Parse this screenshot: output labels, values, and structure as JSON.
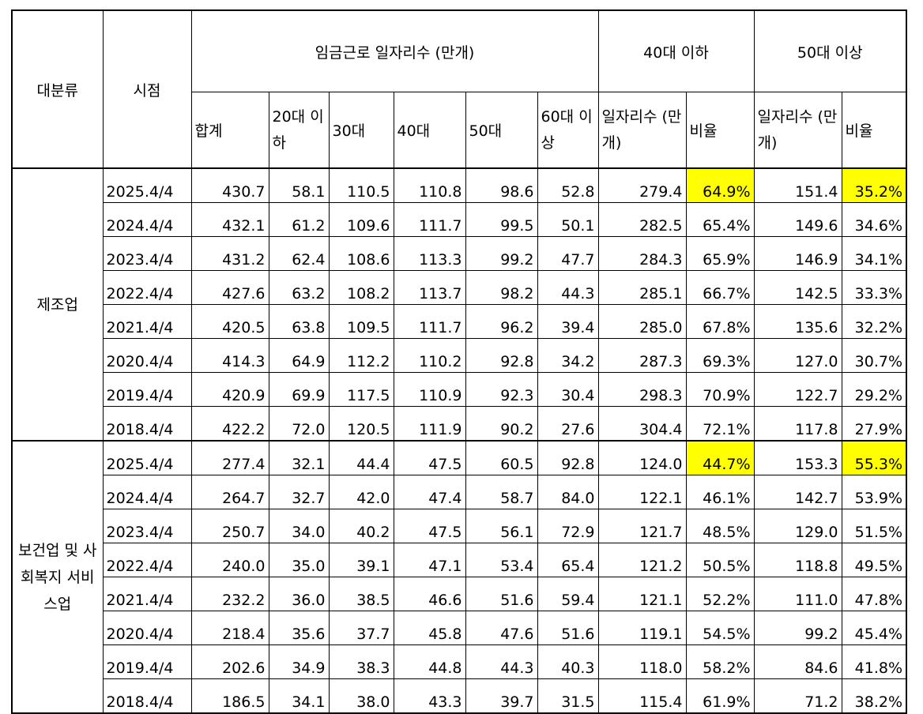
{
  "chart_data": {
    "type": "table",
    "headers": {
      "category": "대분류",
      "period": "시점",
      "jobs_group": "임금근로 일자리수 (만개)",
      "under40_group": "40대 이하",
      "over50_group": "50대 이상",
      "total": "합계",
      "age20": "20대 이하",
      "age30": "30대",
      "age40": "40대",
      "age50": "50대",
      "age60": "60대 이상",
      "under40_jobs": "일자리수 (만개)",
      "under40_ratio": "비율",
      "over50_jobs": "일자리수 (만개)",
      "over50_ratio": "비율"
    },
    "highlight_color": "#ffff00",
    "groups": [
      {
        "category": "제조업",
        "rows": [
          {
            "period": "2025.4/4",
            "total": "430.7",
            "a20": "58.1",
            "a30": "110.5",
            "a40": "110.8",
            "a50": "98.6",
            "a60": "52.8",
            "u40": "279.4",
            "u40r": "64.9%",
            "o50": "151.4",
            "o50r": "35.2%",
            "highlight": true
          },
          {
            "period": "2024.4/4",
            "total": "432.1",
            "a20": "61.2",
            "a30": "109.6",
            "a40": "111.7",
            "a50": "99.5",
            "a60": "50.1",
            "u40": "282.5",
            "u40r": "65.4%",
            "o50": "149.6",
            "o50r": "34.6%"
          },
          {
            "period": "2023.4/4",
            "total": "431.2",
            "a20": "62.4",
            "a30": "108.6",
            "a40": "113.3",
            "a50": "99.2",
            "a60": "47.7",
            "u40": "284.3",
            "u40r": "65.9%",
            "o50": "146.9",
            "o50r": "34.1%"
          },
          {
            "period": "2022.4/4",
            "total": "427.6",
            "a20": "63.2",
            "a30": "108.2",
            "a40": "113.7",
            "a50": "98.2",
            "a60": "44.3",
            "u40": "285.1",
            "u40r": "66.7%",
            "o50": "142.5",
            "o50r": "33.3%"
          },
          {
            "period": "2021.4/4",
            "total": "420.5",
            "a20": "63.8",
            "a30": "109.5",
            "a40": "111.7",
            "a50": "96.2",
            "a60": "39.4",
            "u40": "285.0",
            "u40r": "67.8%",
            "o50": "135.6",
            "o50r": "32.2%"
          },
          {
            "period": "2020.4/4",
            "total": "414.3",
            "a20": "64.9",
            "a30": "112.2",
            "a40": "110.2",
            "a50": "92.8",
            "a60": "34.2",
            "u40": "287.3",
            "u40r": "69.3%",
            "o50": "127.0",
            "o50r": "30.7%"
          },
          {
            "period": "2019.4/4",
            "total": "420.9",
            "a20": "69.9",
            "a30": "117.5",
            "a40": "110.9",
            "a50": "92.3",
            "a60": "30.4",
            "u40": "298.3",
            "u40r": "70.9%",
            "o50": "122.7",
            "o50r": "29.2%"
          },
          {
            "period": "2018.4/4",
            "total": "422.2",
            "a20": "72.0",
            "a30": "120.5",
            "a40": "111.9",
            "a50": "90.2",
            "a60": "27.6",
            "u40": "304.4",
            "u40r": "72.1%",
            "o50": "117.8",
            "o50r": "27.9%"
          }
        ]
      },
      {
        "category": "보건업 및 사회복지 서비스업",
        "rows": [
          {
            "period": "2025.4/4",
            "total": "277.4",
            "a20": "32.1",
            "a30": "44.4",
            "a40": "47.5",
            "a50": "60.5",
            "a60": "92.8",
            "u40": "124.0",
            "u40r": "44.7%",
            "o50": "153.3",
            "o50r": "55.3%",
            "highlight": true
          },
          {
            "period": "2024.4/4",
            "total": "264.7",
            "a20": "32.7",
            "a30": "42.0",
            "a40": "47.4",
            "a50": "58.7",
            "a60": "84.0",
            "u40": "122.1",
            "u40r": "46.1%",
            "o50": "142.7",
            "o50r": "53.9%"
          },
          {
            "period": "2023.4/4",
            "total": "250.7",
            "a20": "34.0",
            "a30": "40.2",
            "a40": "47.5",
            "a50": "56.1",
            "a60": "72.9",
            "u40": "121.7",
            "u40r": "48.5%",
            "o50": "129.0",
            "o50r": "51.5%"
          },
          {
            "period": "2022.4/4",
            "total": "240.0",
            "a20": "35.0",
            "a30": "39.1",
            "a40": "47.1",
            "a50": "53.4",
            "a60": "65.4",
            "u40": "121.2",
            "u40r": "50.5%",
            "o50": "118.8",
            "o50r": "49.5%"
          },
          {
            "period": "2021.4/4",
            "total": "232.2",
            "a20": "36.0",
            "a30": "38.5",
            "a40": "46.6",
            "a50": "51.6",
            "a60": "59.4",
            "u40": "121.1",
            "u40r": "52.2%",
            "o50": "111.0",
            "o50r": "47.8%"
          },
          {
            "period": "2020.4/4",
            "total": "218.4",
            "a20": "35.6",
            "a30": "37.7",
            "a40": "45.8",
            "a50": "47.6",
            "a60": "51.6",
            "u40": "119.1",
            "u40r": "54.5%",
            "o50": "99.2",
            "o50r": "45.4%"
          },
          {
            "period": "2019.4/4",
            "total": "202.6",
            "a20": "34.9",
            "a30": "38.3",
            "a40": "44.8",
            "a50": "44.3",
            "a60": "40.3",
            "u40": "118.0",
            "u40r": "58.2%",
            "o50": "84.6",
            "o50r": "41.8%"
          },
          {
            "period": "2018.4/4",
            "total": "186.5",
            "a20": "34.1",
            "a30": "38.0",
            "a40": "43.3",
            "a50": "39.7",
            "a60": "31.5",
            "u40": "115.4",
            "u40r": "61.9%",
            "o50": "71.2",
            "o50r": "38.2%"
          }
        ]
      }
    ]
  }
}
